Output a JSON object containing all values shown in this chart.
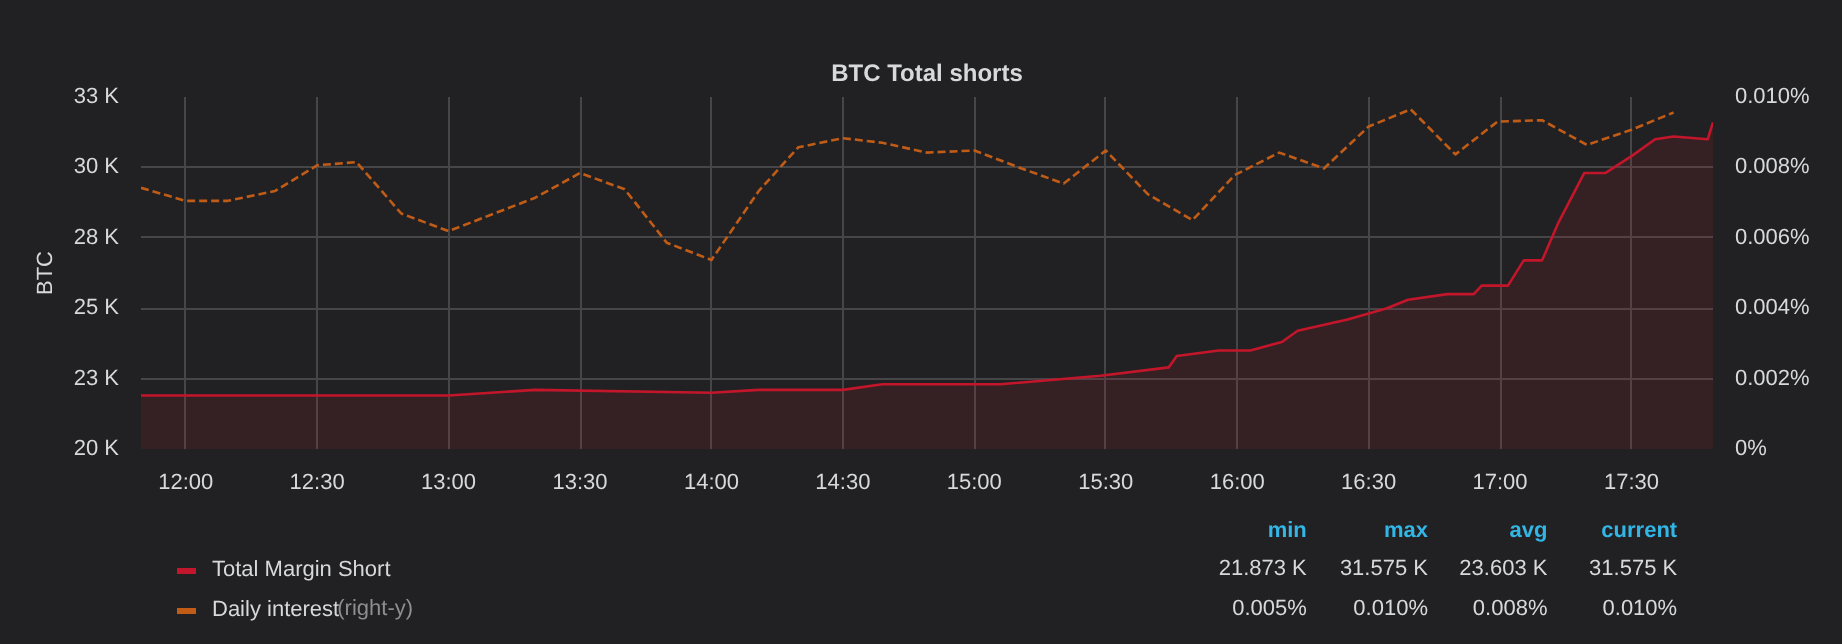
{
  "chart_data": {
    "type": "line",
    "title": "BTC Total shorts",
    "ylabel": "BTC",
    "xlim": [
      11.83,
      17.81
    ],
    "xticks": [
      {
        "value": 12,
        "label": "12:00"
      },
      {
        "value": 12.5,
        "label": "12:30"
      },
      {
        "value": 13,
        "label": "13:00"
      },
      {
        "value": 13.5,
        "label": "13:30"
      },
      {
        "value": 14,
        "label": "14:00"
      },
      {
        "value": 14.5,
        "label": "14:30"
      },
      {
        "value": 15,
        "label": "15:00"
      },
      {
        "value": 15.5,
        "label": "15:30"
      },
      {
        "value": 16,
        "label": "16:00"
      },
      {
        "value": 16.5,
        "label": "16:30"
      },
      {
        "value": 17,
        "label": "17:00"
      },
      {
        "value": 17.5,
        "label": "17:30"
      }
    ],
    "ylim": [
      20000,
      32500
    ],
    "yticks": [
      {
        "value": 20000,
        "label": "20 K"
      },
      {
        "value": 22500,
        "label": "23 K"
      },
      {
        "value": 25000,
        "label": "25 K"
      },
      {
        "value": 27500,
        "label": "28 K"
      },
      {
        "value": 30000,
        "label": "30 K"
      },
      {
        "value": 32500,
        "label": "33 K"
      }
    ],
    "y2lim": [
      0,
      0.01
    ],
    "y2ticks": [
      {
        "value": 0,
        "label": "0%"
      },
      {
        "value": 0.002,
        "label": "0.002%"
      },
      {
        "value": 0.004,
        "label": "0.004%"
      },
      {
        "value": 0.006,
        "label": "0.006%"
      },
      {
        "value": 0.008,
        "label": "0.008%"
      },
      {
        "value": 0.01,
        "label": "0.010%"
      }
    ],
    "grid": true,
    "legend": "bottom left",
    "series": [
      {
        "name": "Total Margin Short",
        "type": "area",
        "color": "#c4162a",
        "line_style": "solid",
        "x": [
          11.83,
          12.5,
          13.0,
          13.33,
          14.0,
          14.18,
          14.5,
          14.65,
          15.1,
          15.48,
          15.74,
          15.77,
          15.93,
          16.05,
          16.17,
          16.23,
          16.42,
          16.57,
          16.65,
          16.8,
          16.9,
          16.93,
          17.03,
          17.09,
          17.16,
          17.22,
          17.32,
          17.4,
          17.5,
          17.59,
          17.66,
          17.79,
          17.81
        ],
        "values": [
          21900,
          21900,
          21900,
          22100,
          22000,
          22100,
          22100,
          22300,
          22300,
          22600,
          22900,
          23300,
          23500,
          23500,
          23800,
          24200,
          24600,
          25000,
          25300,
          25500,
          25500,
          25800,
          25800,
          26700,
          26700,
          28000,
          29800,
          29800,
          30400,
          31000,
          31100,
          31000,
          31600
        ]
      },
      {
        "name": "Daily interest",
        "axis": "y2",
        "color": "#c15c17",
        "line_style": "dashed",
        "x": [
          11.83,
          12.0,
          12.16,
          12.34,
          12.5,
          12.65,
          12.82,
          13.0,
          13.33,
          13.5,
          13.67,
          13.83,
          14.0,
          14.18,
          14.33,
          14.5,
          14.65,
          14.82,
          15.0,
          15.18,
          15.34,
          15.5,
          15.66,
          15.83,
          15.99,
          16.16,
          16.33,
          16.5,
          16.66,
          16.83,
          16.99,
          17.16,
          17.33,
          17.5,
          17.66
        ],
        "values": [
          0.00742,
          0.00705,
          0.00705,
          0.00733,
          0.00806,
          0.00815,
          0.00669,
          0.00619,
          0.00714,
          0.00784,
          0.00738,
          0.00586,
          0.00537,
          0.00733,
          0.00857,
          0.00883,
          0.0087,
          0.00842,
          0.00848,
          0.00797,
          0.00754,
          0.00848,
          0.00724,
          0.0065,
          0.00778,
          0.00842,
          0.00797,
          0.00916,
          0.00965,
          0.00837,
          0.0093,
          0.00934,
          0.00864,
          0.00907,
          0.00956
        ]
      }
    ],
    "annotations": [
      "(right-y)",
      "min",
      "max",
      "avg",
      "current",
      "21.873 K",
      "31.575 K",
      "23.603 K",
      "31.575 K",
      "0.005%",
      "0.010%",
      "0.008%",
      "0.010%"
    ]
  }
}
